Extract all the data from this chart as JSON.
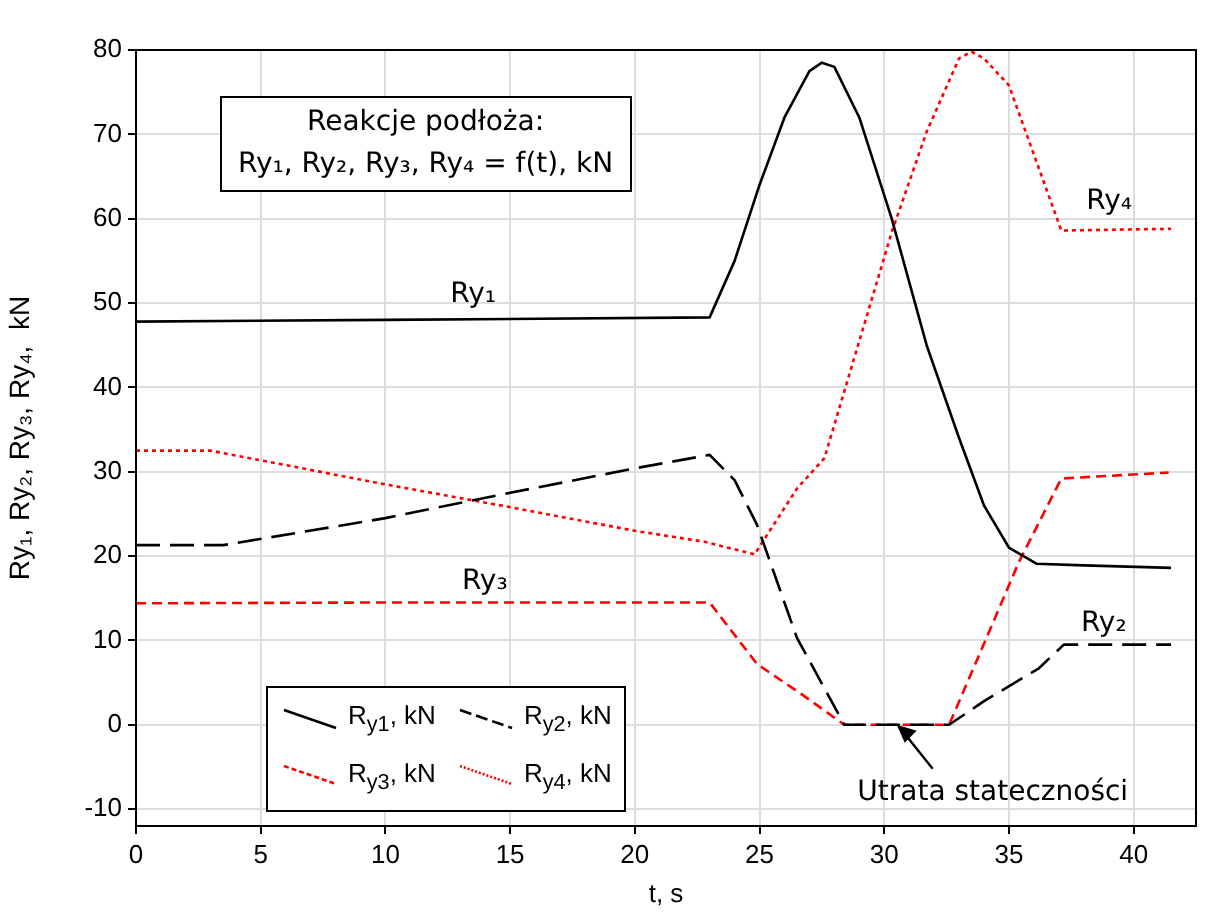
{
  "chart_data": {
    "type": "line",
    "title": "Reakcje podłoża:",
    "subtitle": "Ry₁, Ry₂, Ry₃, Ry₄ = f(t),  kN",
    "xlabel": "t, s",
    "ylabel": "Ry₁, Ry₂, Ry₃, Ry₄,  kN",
    "xlim": [
      0,
      42.5
    ],
    "xticks": [
      0,
      5,
      10,
      15,
      20,
      25,
      30,
      35,
      40
    ],
    "ylim": [
      -12,
      80
    ],
    "yticks": [
      -10,
      0,
      10,
      20,
      30,
      40,
      50,
      60,
      70,
      80
    ],
    "grid": true,
    "legend": "bottom left",
    "marker": "none",
    "series": [
      {
        "name": "R$_{y1}$, kN",
        "color": "#000000",
        "line_style": "solid",
        "x": [
          0,
          10,
          23,
          24,
          25,
          26,
          27,
          27.5,
          28,
          29,
          30.3,
          31.7,
          33,
          34,
          35,
          36.1,
          38,
          41.5
        ],
        "values": [
          47.8,
          48,
          48.3,
          55,
          64,
          72,
          77.5,
          78.5,
          78,
          72,
          60,
          45,
          34,
          26,
          21,
          19.1,
          18.9,
          18.6
        ]
      },
      {
        "name": "R$_{y2}$, kN",
        "color": "#000000",
        "line_style": "dashed",
        "x": [
          0,
          3.5,
          10,
          15,
          20,
          23,
          24,
          24.9,
          26.5,
          28.4,
          32.6,
          34,
          36.2,
          37.2,
          41.5
        ],
        "values": [
          21.3,
          21.3,
          24.5,
          27.5,
          30.4,
          32,
          29,
          23.7,
          10.3,
          0,
          0,
          2.8,
          6.7,
          9.5,
          9.5
        ]
      },
      {
        "name": "R$_{y3}$, kN",
        "color": "#ff0000",
        "line_style": "dashed",
        "x": [
          0,
          10,
          23,
          24.9,
          26.7,
          28.4,
          32.6,
          34.1,
          35.4,
          37.1,
          41.4
        ],
        "values": [
          14.4,
          14.5,
          14.5,
          7.2,
          3.6,
          0,
          0,
          10.3,
          19.3,
          29.2,
          29.9
        ]
      },
      {
        "name": "R$_{y4}$, kN",
        "color": "#ff0000",
        "line_style": "dotted",
        "x": [
          0,
          3,
          10,
          15,
          20,
          22.8,
          24.8,
          26.5,
          27.6,
          30.3,
          31.7,
          33,
          33.5,
          34,
          35,
          37.1,
          41.5
        ],
        "values": [
          32.5,
          32.5,
          28.5,
          25.8,
          23,
          21.7,
          20.2,
          28,
          31.6,
          58.4,
          70.3,
          79,
          79.8,
          79,
          75.8,
          58.6,
          58.8
        ]
      }
    ],
    "annotations": [
      "Ry₁",
      "Ry₂",
      "Ry₃",
      "Ry₄",
      {
        "text": "Utrata stateczności",
        "x": 30.5,
        "y": 0
      }
    ]
  }
}
